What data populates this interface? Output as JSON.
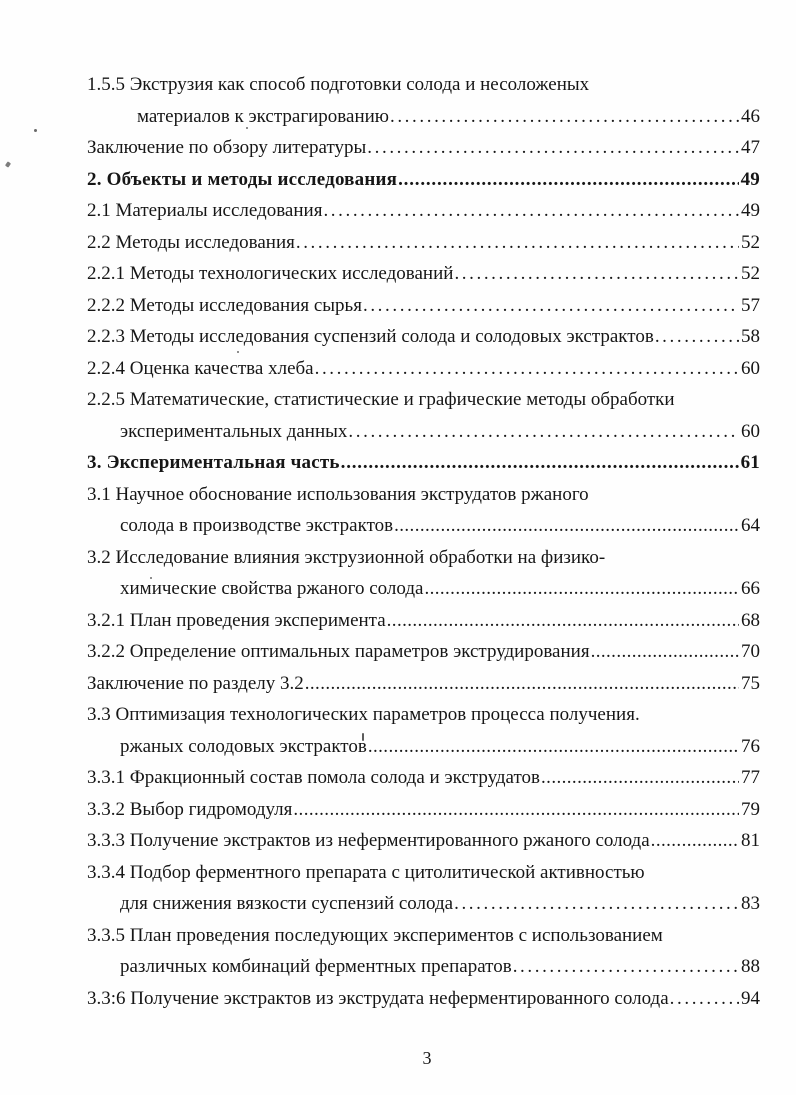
{
  "page": {
    "footer_page_number": "3"
  },
  "toc": {
    "entries": [
      {
        "text": "1.5.5 Экструзия как способ подготовки солода и несоложеных",
        "page": "",
        "indent": 0,
        "bold": false,
        "leader": "none"
      },
      {
        "text": "материалов к экстрагированию",
        "page": "46",
        "indent": 2,
        "bold": false,
        "leader": "sparse"
      },
      {
        "text": "Заключение по обзору литературы",
        "page": "47",
        "indent": 0,
        "bold": false,
        "leader": "sparse"
      },
      {
        "text": "2. Объекты и методы исследования",
        "page": "49",
        "indent": 0,
        "bold": true,
        "leader": "dense"
      },
      {
        "text": "2.1 Материалы исследования",
        "page": "49",
        "indent": 0,
        "bold": false,
        "leader": "sparse"
      },
      {
        "text": "2.2 Методы исследования",
        "page": "52",
        "indent": 0,
        "bold": false,
        "leader": "sparse"
      },
      {
        "text": "2.2.1 Методы технологических исследований",
        "page": "52",
        "indent": 0,
        "bold": false,
        "leader": "sparse"
      },
      {
        "text": "2.2.2 Методы исследования сырья",
        "page": "57",
        "indent": 0,
        "bold": false,
        "leader": "sparse"
      },
      {
        "text": "2.2.3 Методы исследования суспензий солода и солодовых экстрактов",
        "page": "58",
        "indent": 0,
        "bold": false,
        "leader": "sparse"
      },
      {
        "text": "2.2.4 Оценка качества хлеба",
        "page": "60",
        "indent": 0,
        "bold": false,
        "leader": "sparse"
      },
      {
        "text": "2.2.5 Математические, статистические и графические методы обработки",
        "page": "",
        "indent": 0,
        "bold": false,
        "leader": "none"
      },
      {
        "text": "экспериментальных данных",
        "page": "60",
        "indent": 1,
        "bold": false,
        "leader": "sparse"
      },
      {
        "text": "3. Экспериментальная часть",
        "page": "61",
        "indent": 0,
        "bold": true,
        "leader": "dense"
      },
      {
        "text": "3.1 Научное обоснование использования экструдатов ржаного",
        "page": "",
        "indent": 0,
        "bold": false,
        "leader": "none"
      },
      {
        "text": "солода в производстве экстрактов",
        "page": "64",
        "indent": 1,
        "bold": false,
        "leader": "dense"
      },
      {
        "text": "3.2 Исследование влияния экструзионной обработки на физико-",
        "page": "",
        "indent": 0,
        "bold": false,
        "leader": "none"
      },
      {
        "text": "химические свойства ржаного солода",
        "page": "66",
        "indent": 1,
        "bold": false,
        "leader": "dense"
      },
      {
        "text": "3.2.1 План проведения эксперимента",
        "page": "68",
        "indent": 0,
        "bold": false,
        "leader": "dense"
      },
      {
        "text": "3.2.2 Определение оптимальных параметров экструдирования",
        "page": "70",
        "indent": 0,
        "bold": false,
        "leader": "dense"
      },
      {
        "text": "Заключение по разделу 3.2",
        "page": "75",
        "indent": 0,
        "bold": false,
        "leader": "dense"
      },
      {
        "text": "3.3 Оптимизация технологических параметров процесса получения.",
        "page": "",
        "indent": 0,
        "bold": false,
        "leader": "none"
      },
      {
        "text": "ржаных солодовых экстрактов",
        "page": "76",
        "indent": 1,
        "bold": false,
        "leader": "dense"
      },
      {
        "text": "3.3.1 Фракционный состав помола солода и экструдатов",
        "page": "77",
        "indent": 0,
        "bold": false,
        "leader": "dense"
      },
      {
        "text": "3.3.2 Выбор гидромодуля",
        "page": "79",
        "indent": 0,
        "bold": false,
        "leader": "dense"
      },
      {
        "text": "3.3.3 Получение экстрактов из неферментированного ржаного солода",
        "page": "81",
        "indent": 0,
        "bold": false,
        "leader": "dense"
      },
      {
        "text": "3.3.4 Подбор ферментного препарата с цитолитической активностью",
        "page": "",
        "indent": 0,
        "bold": false,
        "leader": "none"
      },
      {
        "text": "для снижения вязкости суспензий солода",
        "page": "83",
        "indent": 1,
        "bold": false,
        "leader": "sparse"
      },
      {
        "text": "3.3.5 План проведения последующих экспериментов с использованием",
        "page": "",
        "indent": 0,
        "bold": false,
        "leader": "none"
      },
      {
        "text": "различных комбинаций ферментных препаратов",
        "page": "88",
        "indent": 1,
        "bold": false,
        "leader": "sparse"
      },
      {
        "text": "3.3:6 Получение экстрактов из экструдата неферментированного солода",
        "page": "94",
        "indent": 0,
        "bold": false,
        "leader": "sparse"
      }
    ]
  }
}
